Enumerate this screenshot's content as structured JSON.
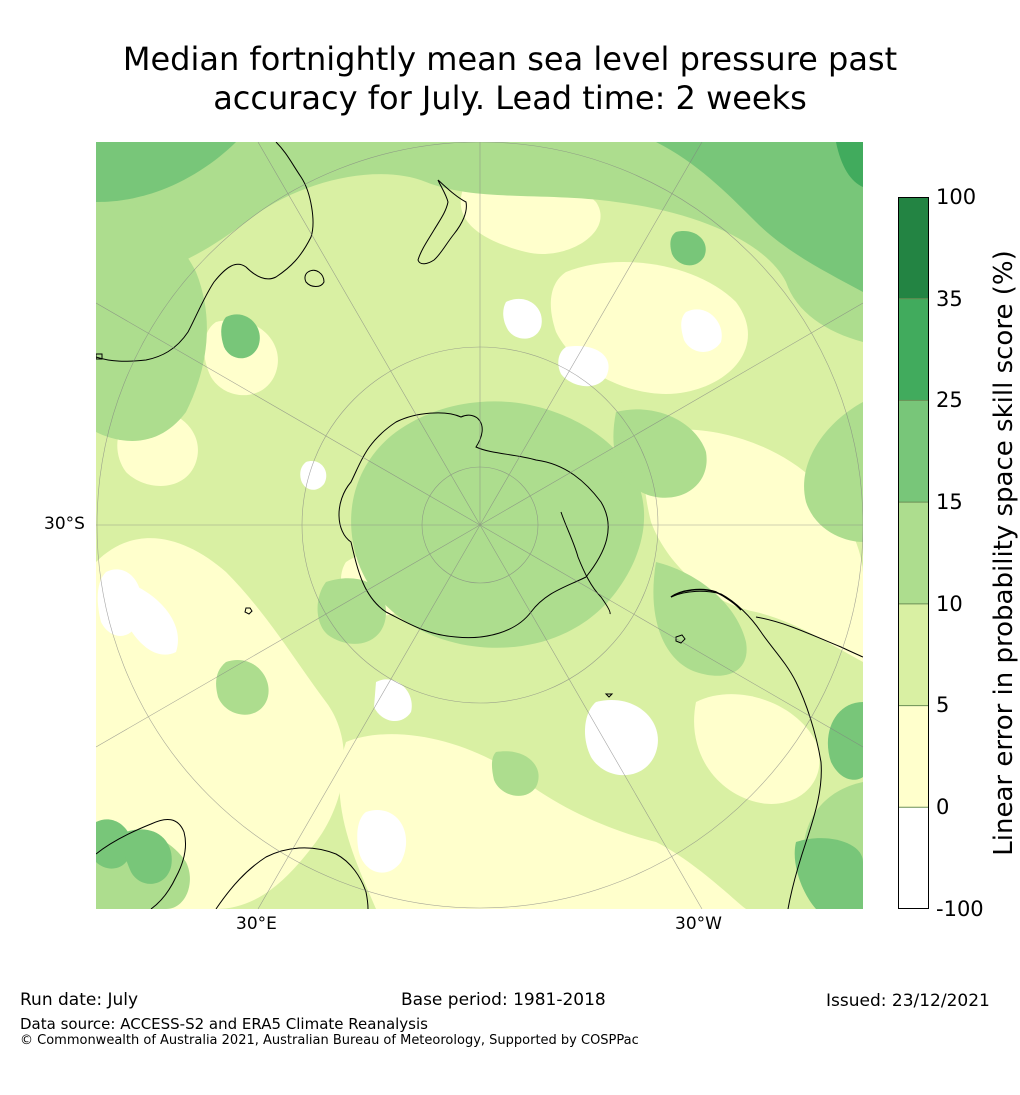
{
  "title": {
    "line1": "Median fortnightly mean sea level pressure past",
    "line2": "accuracy for July. Lead time: 2 weeks"
  },
  "map": {
    "projection": "south-polar-stereographic",
    "lat_label": "30°S",
    "lon_labels": [
      "30°E",
      "30°W"
    ],
    "landmass_labels": []
  },
  "colorbar": {
    "label": "Linear error in probability space skill score (%)",
    "ticks": [
      "-100",
      "0",
      "5",
      "10",
      "15",
      "25",
      "35",
      "100"
    ],
    "bins": [
      {
        "from": "-100",
        "to": "0",
        "color": "#ffffff"
      },
      {
        "from": "0",
        "to": "5",
        "color": "#ffffcc"
      },
      {
        "from": "5",
        "to": "10",
        "color": "#d9f0a3"
      },
      {
        "from": "10",
        "to": "15",
        "color": "#addd8e"
      },
      {
        "from": "15",
        "to": "25",
        "color": "#78c679"
      },
      {
        "from": "25",
        "to": "35",
        "color": "#41ab5d"
      },
      {
        "from": "35",
        "to": "100",
        "color": "#238443"
      }
    ]
  },
  "footer": {
    "run_date": "Run date: July",
    "base_period": "Base period: 1981-2018",
    "issued": "Issued: 23/12/2021",
    "data_source": "Data source: ACCESS-S2 and ERA5 Climate Reanalysis",
    "copyright": "© Commonwealth of Australia 2021, Australian Bureau of Meteorology, Supported by COSPPac"
  }
}
